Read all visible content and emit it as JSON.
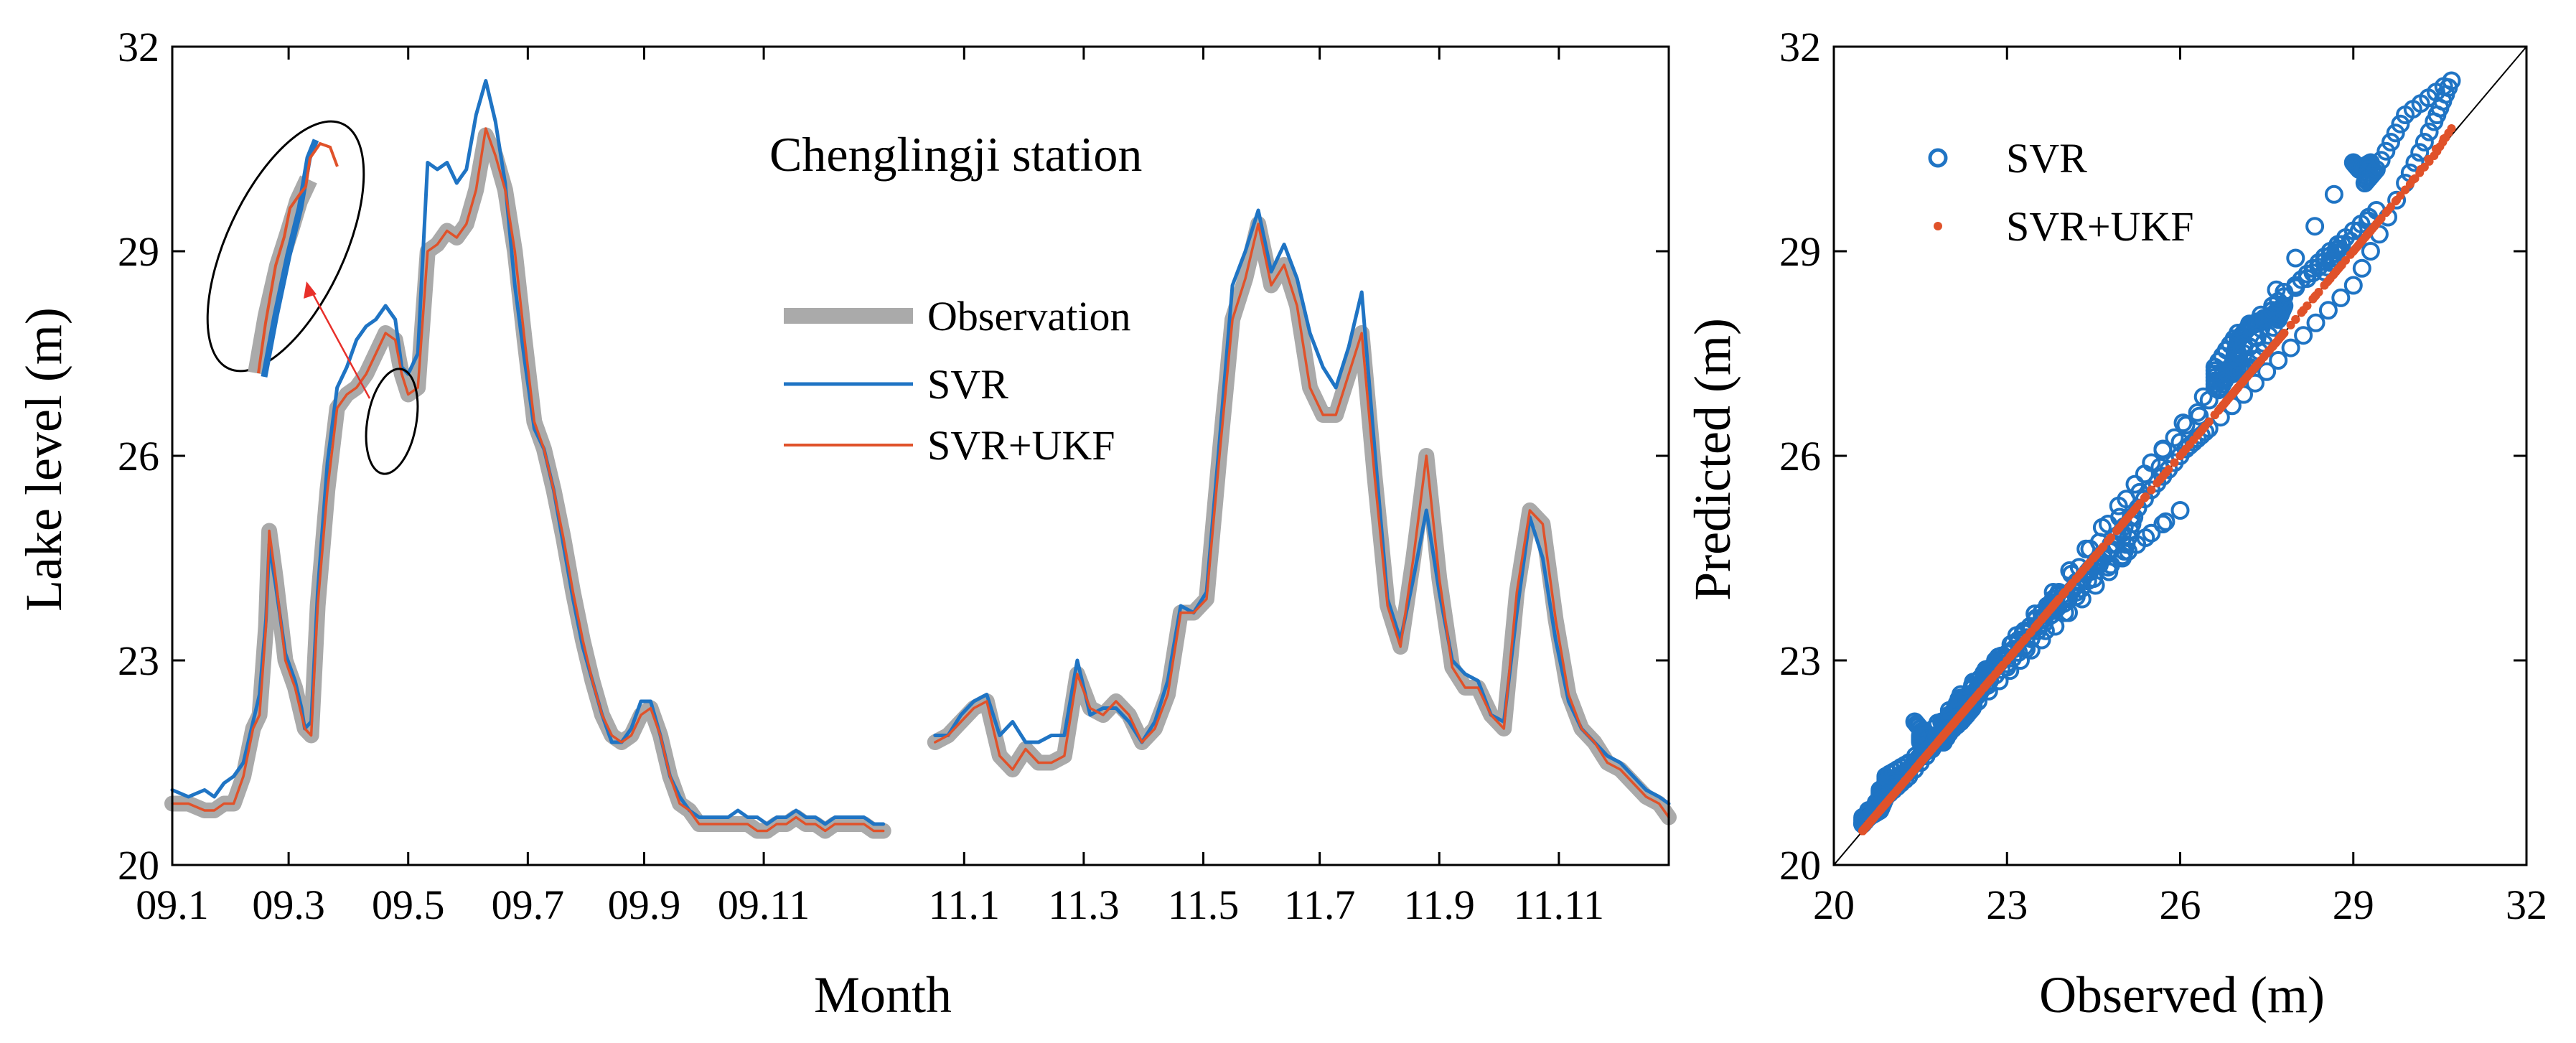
{
  "colors": {
    "observation": "#aaaaaa",
    "svr": "#1f74c4",
    "svr_ukf": "#e0522a",
    "annotation": "#e8302a"
  },
  "chart_data": [
    {
      "type": "line",
      "annotation": "Chenglingji station",
      "xlabel": "Month",
      "ylabel": "Lake level (m)",
      "ylim": [
        20,
        32
      ],
      "yticks": [
        "20",
        "23",
        "26",
        "29",
        "32"
      ],
      "xticks": [
        "09.1",
        "09.3",
        "09.5",
        "09.7",
        "09.9",
        "09.11",
        "11.1",
        "11.3",
        "11.5",
        "11.7",
        "11.9",
        "11.11"
      ],
      "grid": false,
      "legend_position": "center",
      "segments": [
        {
          "x": [
            0,
            0.5,
            1,
            1.3,
            1.6,
            1.9,
            2.2,
            2.5,
            2.7,
            2.9,
            3.0,
            3.2,
            3.5,
            3.8,
            4.0,
            4.1,
            4.3,
            4.5,
            4.8,
            5.1,
            5.4,
            5.7,
            6.0,
            6.3,
            6.6,
            6.9,
            7.1,
            7.3,
            7.6,
            7.9,
            8.2,
            8.5,
            8.8,
            9.1,
            9.4,
            9.7,
            10.0,
            10.3,
            10.6,
            10.9,
            11.2,
            11.5,
            11.8,
            12.1,
            12.4,
            12.7,
            13.0,
            13.3,
            13.6,
            13.9,
            14.2,
            14.5,
            14.8,
            15.1,
            15.4,
            15.7,
            16.0,
            16.3,
            16.6,
            16.9,
            17.2,
            17.5,
            17.8,
            18.1,
            18.4,
            18.7,
            19.0,
            19.3,
            19.6,
            19.9,
            20.2,
            20.5,
            20.8,
            21.1,
            21.4,
            21.7,
            22.0
          ],
          "series": [
            {
              "name": "Observation",
              "values": [
                20.9,
                20.9,
                20.8,
                20.8,
                20.9,
                20.9,
                21.3,
                22.0,
                22.2,
                23.5,
                24.9,
                24.2,
                23.0,
                22.6,
                22.2,
                22.0,
                21.9,
                23.8,
                25.5,
                26.7,
                26.9,
                27.0,
                27.2,
                27.5,
                27.8,
                27.7,
                27.2,
                26.9,
                27.0,
                29.0,
                29.1,
                29.3,
                29.2,
                29.4,
                29.9,
                30.7,
                30.4,
                29.9,
                29.0,
                27.7,
                26.5,
                26.1,
                25.5,
                24.8,
                24.0,
                23.3,
                22.7,
                22.2,
                21.9,
                21.8,
                21.9,
                22.2,
                22.3,
                21.9,
                21.3,
                20.9,
                20.8,
                20.6,
                20.6,
                20.6,
                20.6,
                20.6,
                20.6,
                20.5,
                20.5,
                20.6,
                20.6,
                20.7,
                20.6,
                20.6,
                20.5,
                20.6,
                20.6,
                20.6,
                20.6,
                20.5,
                20.5
              ]
            },
            {
              "name": "SVR",
              "values": [
                21.1,
                21.0,
                21.1,
                21.0,
                21.2,
                21.3,
                21.5,
                22.1,
                22.5,
                23.6,
                24.7,
                24.1,
                23.1,
                22.7,
                22.3,
                22.0,
                22.1,
                24.0,
                25.9,
                27.0,
                27.3,
                27.7,
                27.9,
                28.0,
                28.2,
                28.0,
                27.3,
                27.2,
                27.5,
                30.3,
                30.2,
                30.3,
                30.0,
                30.2,
                31.0,
                31.5,
                30.9,
                30.0,
                28.5,
                27.4,
                26.4,
                26.1,
                25.5,
                24.7,
                23.9,
                23.2,
                22.7,
                22.2,
                21.8,
                21.8,
                22.0,
                22.4,
                22.4,
                21.9,
                21.3,
                21.0,
                20.8,
                20.7,
                20.7,
                20.7,
                20.7,
                20.8,
                20.7,
                20.7,
                20.6,
                20.7,
                20.7,
                20.8,
                20.7,
                20.7,
                20.6,
                20.7,
                20.7,
                20.7,
                20.7,
                20.6,
                20.6
              ]
            },
            {
              "name": "SVR+UKF",
              "values": [
                20.9,
                20.9,
                20.8,
                20.8,
                20.9,
                20.9,
                21.3,
                22.0,
                22.2,
                23.5,
                24.9,
                24.2,
                23.0,
                22.6,
                22.2,
                22.0,
                21.9,
                23.8,
                25.5,
                26.7,
                26.9,
                27.0,
                27.2,
                27.5,
                27.8,
                27.7,
                27.2,
                26.9,
                27.0,
                29.0,
                29.1,
                29.3,
                29.2,
                29.4,
                29.9,
                30.8,
                30.4,
                29.9,
                29.0,
                27.7,
                26.5,
                26.1,
                25.5,
                24.8,
                24.0,
                23.3,
                22.7,
                22.2,
                21.9,
                21.8,
                21.9,
                22.2,
                22.3,
                21.9,
                21.3,
                20.9,
                20.8,
                20.6,
                20.6,
                20.6,
                20.6,
                20.6,
                20.6,
                20.5,
                20.5,
                20.6,
                20.6,
                20.7,
                20.6,
                20.6,
                20.5,
                20.6,
                20.6,
                20.6,
                20.6,
                20.5,
                20.5
              ]
            }
          ]
        },
        {
          "x": [
            23.6,
            24.0,
            24.4,
            24.8,
            25.2,
            25.6,
            26.0,
            26.4,
            26.8,
            27.2,
            27.6,
            28.0,
            28.4,
            28.8,
            29.2,
            29.6,
            30.0,
            30.4,
            30.8,
            31.2,
            31.6,
            32.0,
            32.4,
            32.8,
            33.2,
            33.6,
            34.0,
            34.4,
            34.8,
            35.2,
            35.6,
            36.0,
            36.4,
            36.8,
            37.2,
            37.6,
            38.0,
            38.4,
            38.8,
            39.2,
            39.6,
            40.0,
            40.4,
            40.8,
            41.2,
            41.6,
            42.0,
            42.4,
            42.8,
            43.2,
            43.6,
            44.0,
            44.4,
            44.8,
            45.2,
            45.6,
            46.0,
            46.3
          ],
          "series": [
            {
              "name": "Observation",
              "values": [
                21.8,
                21.9,
                22.1,
                22.3,
                22.4,
                21.6,
                21.4,
                21.7,
                21.5,
                21.5,
                21.6,
                22.8,
                22.3,
                22.2,
                22.4,
                22.2,
                21.8,
                22.0,
                22.5,
                23.7,
                23.7,
                23.9,
                26.0,
                28.0,
                28.6,
                29.4,
                28.5,
                28.8,
                28.2,
                27.0,
                26.6,
                26.6,
                27.2,
                27.8,
                25.7,
                23.8,
                23.2,
                24.5,
                26.0,
                24.2,
                22.9,
                22.6,
                22.6,
                22.2,
                22.0,
                24.0,
                25.2,
                25.0,
                23.6,
                22.5,
                22.0,
                21.8,
                21.5,
                21.4,
                21.2,
                21.0,
                20.9,
                20.7
              ]
            },
            {
              "name": "SVR",
              "values": [
                21.9,
                21.9,
                22.2,
                22.4,
                22.5,
                21.9,
                22.1,
                21.8,
                21.8,
                21.9,
                21.9,
                23.0,
                22.2,
                22.3,
                22.3,
                22.1,
                21.8,
                22.1,
                22.7,
                23.8,
                23.7,
                24.0,
                26.2,
                28.5,
                29.0,
                29.6,
                28.7,
                29.1,
                28.6,
                27.8,
                27.3,
                27.0,
                27.6,
                28.4,
                26.1,
                23.9,
                23.3,
                24.2,
                25.2,
                24.0,
                23.0,
                22.8,
                22.7,
                22.2,
                22.1,
                23.7,
                25.1,
                24.5,
                23.3,
                22.4,
                22.0,
                21.8,
                21.6,
                21.5,
                21.3,
                21.1,
                21.0,
                20.9
              ]
            },
            {
              "name": "SVR+UKF",
              "values": [
                21.8,
                21.9,
                22.1,
                22.3,
                22.4,
                21.6,
                21.4,
                21.7,
                21.5,
                21.5,
                21.6,
                22.8,
                22.3,
                22.2,
                22.4,
                22.2,
                21.8,
                22.0,
                22.5,
                23.7,
                23.7,
                23.9,
                26.0,
                28.0,
                28.6,
                29.4,
                28.5,
                28.8,
                28.2,
                27.0,
                26.6,
                26.6,
                27.2,
                27.8,
                25.7,
                23.8,
                23.2,
                24.5,
                26.0,
                24.2,
                22.9,
                22.6,
                22.6,
                22.2,
                22.0,
                24.0,
                25.2,
                25.0,
                23.6,
                22.5,
                22.0,
                21.8,
                21.5,
                21.4,
                21.2,
                21.0,
                20.9,
                20.7
              ]
            }
          ]
        }
      ]
    },
    {
      "type": "scatter",
      "xlabel": "Observed (m)",
      "ylabel": "Predicted (m)",
      "xlim": [
        20,
        32
      ],
      "ylim": [
        20,
        32
      ],
      "xticks": [
        "20",
        "23",
        "26",
        "29",
        "32"
      ],
      "yticks": [
        "20",
        "23",
        "26",
        "29",
        "32"
      ],
      "grid": false,
      "legend_position": "top-left",
      "reference_line": "1:1",
      "series": [
        {
          "name": "SVR",
          "marker": "open-circle"
        },
        {
          "name": "SVR+UKF",
          "marker": "filled-dot"
        }
      ]
    }
  ]
}
